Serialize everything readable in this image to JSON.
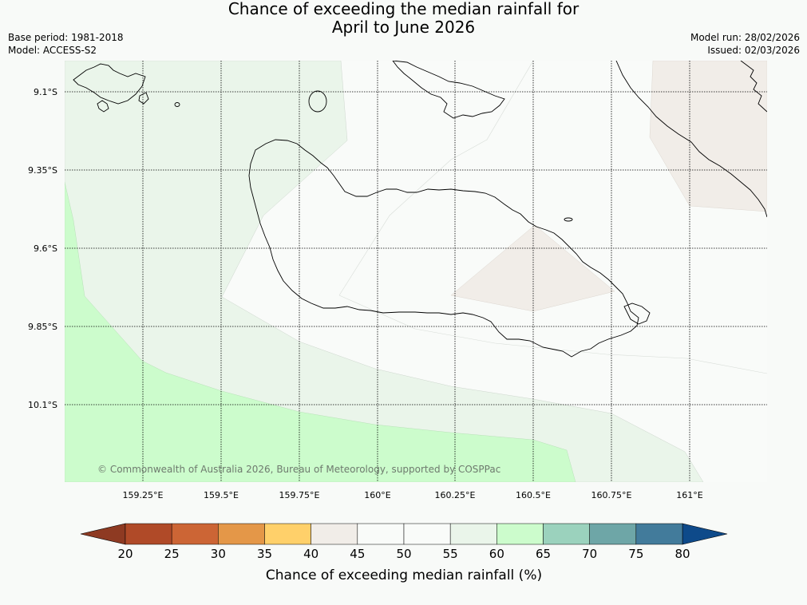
{
  "title": {
    "line1": "Chance of exceeding the median rainfall for",
    "line2": "April to June 2026"
  },
  "meta": {
    "base_period": "Base period: 1981-2018",
    "model": "Model: ACCESS-S2",
    "model_run": "Model run: 28/02/2026",
    "issued": "Issued: 02/03/2026"
  },
  "map": {
    "copyright": "© Commonwealth of Australia 2026, Bureau of Meteorology, supported by COSPPac",
    "lat_labels": [
      "9.1°S",
      "9.35°S",
      "9.6°S",
      "9.85°S",
      "10.1°S"
    ],
    "lon_labels": [
      "159.25°E",
      "159.5°E",
      "159.75°E",
      "160°E",
      "160.25°E",
      "160.5°E",
      "160.75°E",
      "161°E"
    ]
  },
  "colorbar": {
    "title": "Chance of exceeding median rainfall (%)",
    "ticks": [
      "20",
      "25",
      "30",
      "35",
      "40",
      "45",
      "50",
      "55",
      "60",
      "65",
      "70",
      "75",
      "80"
    ],
    "colors": {
      "below_20": "#8e3a22",
      "20_25": "#b04a28",
      "25_30": "#cc6535",
      "30_35": "#e49748",
      "35_40": "#ffd06a",
      "40_45": "#f1ede8",
      "45_50": "#f9fbf9",
      "50_55": "#f9fbf9",
      "55_60": "#eaf5ea",
      "60_65": "#ccfccc",
      "65_70": "#9bd2bd",
      "70_75": "#6ea6a7",
      "75_80": "#427b9b",
      "above_80": "#0e4a8a"
    }
  }
}
